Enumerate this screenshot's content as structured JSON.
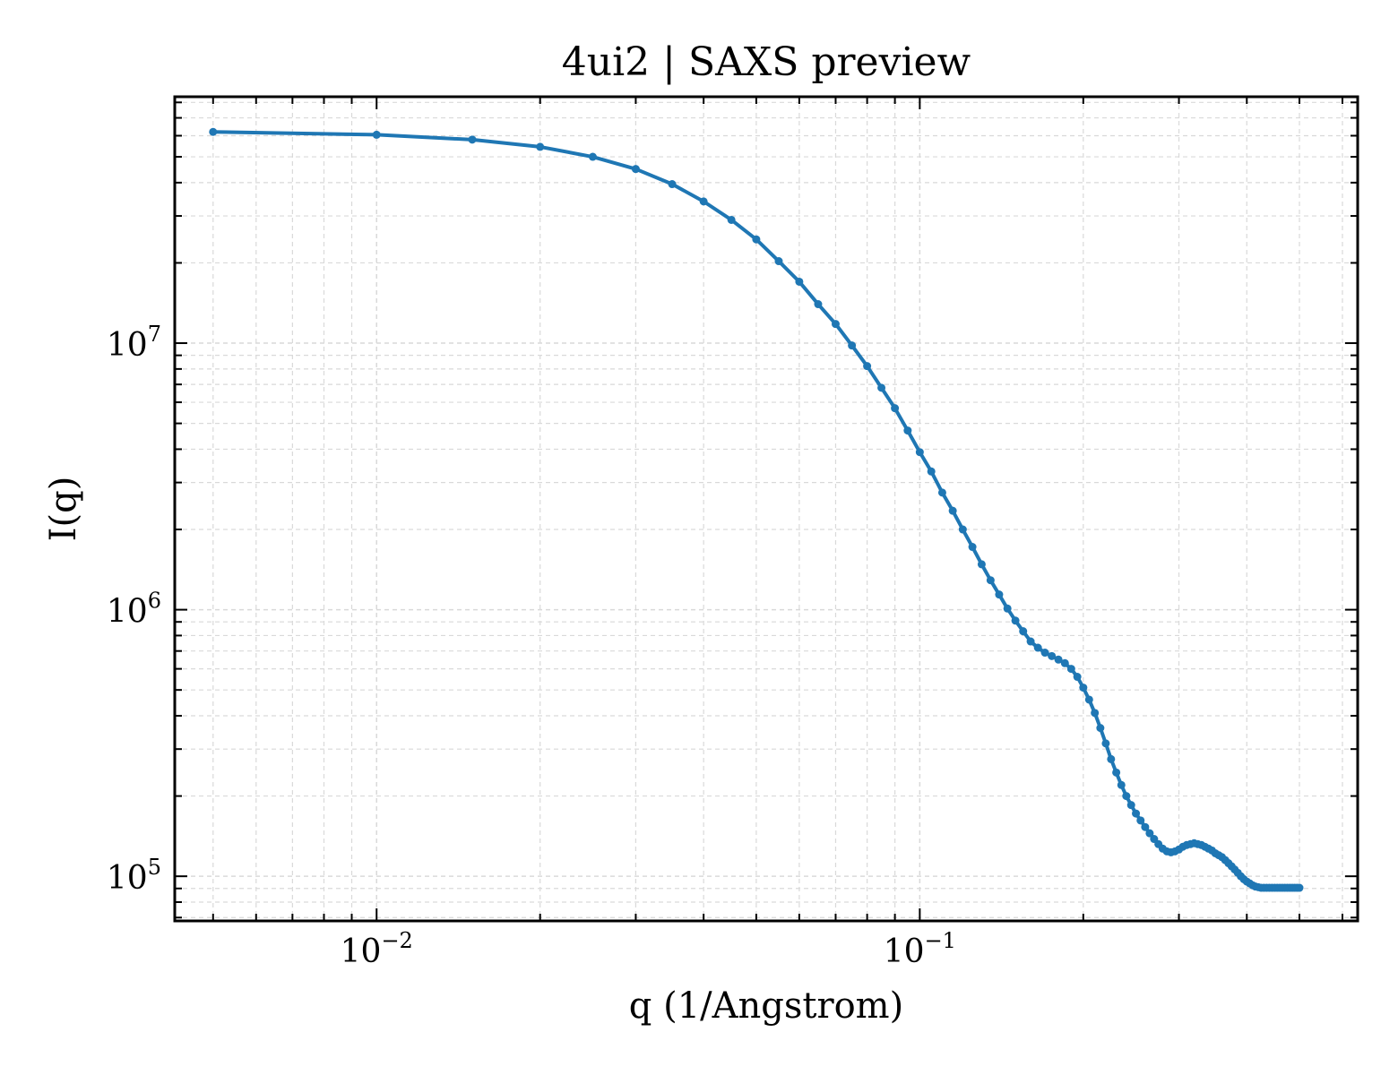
{
  "chart_data": {
    "type": "line",
    "title": "4ui2 | SAXS preview",
    "xlabel": "q (1/Angstrom)",
    "ylabel": "I(q)",
    "xscale": "log",
    "yscale": "log",
    "xlim": [
      0.00425,
      0.64
    ],
    "ylim": [
      68000,
      84000000
    ],
    "grid": true,
    "legend": "none",
    "colors": {
      "series": "#1f77b4",
      "grid": "#d9d9d9",
      "axis": "#000000"
    },
    "x_ticks": [
      {
        "base": "10",
        "exp": "−2",
        "value": 0.01
      },
      {
        "base": "10",
        "exp": "−1",
        "value": 0.1
      }
    ],
    "y_ticks": [
      {
        "base": "10",
        "exp": "5",
        "value": 100000
      },
      {
        "base": "10",
        "exp": "6",
        "value": 1000000
      },
      {
        "base": "10",
        "exp": "7",
        "value": 10000000
      }
    ],
    "series": [
      {
        "x": [
          0.005,
          0.01,
          0.015,
          0.02,
          0.025,
          0.03,
          0.035,
          0.04,
          0.045,
          0.05,
          0.055,
          0.06,
          0.065,
          0.07,
          0.075,
          0.08,
          0.085,
          0.09,
          0.095,
          0.1,
          0.105,
          0.11,
          0.115,
          0.12,
          0.125,
          0.13,
          0.135,
          0.14,
          0.145,
          0.15,
          0.155,
          0.16,
          0.165,
          0.17,
          0.175,
          0.18,
          0.185,
          0.19,
          0.195,
          0.2,
          0.205,
          0.21,
          0.215,
          0.22,
          0.225,
          0.23,
          0.235,
          0.24,
          0.245,
          0.25,
          0.255,
          0.26,
          0.265,
          0.27,
          0.275,
          0.28,
          0.285,
          0.29,
          0.295,
          0.3,
          0.305,
          0.31,
          0.315,
          0.32,
          0.325,
          0.33,
          0.335,
          0.34,
          0.345,
          0.35,
          0.355,
          0.36,
          0.365,
          0.37,
          0.375,
          0.38,
          0.385,
          0.39,
          0.395,
          0.4,
          0.405,
          0.41,
          0.415,
          0.42,
          0.425,
          0.43,
          0.435,
          0.44,
          0.445,
          0.45,
          0.455,
          0.46,
          0.465,
          0.47,
          0.475,
          0.48,
          0.485,
          0.49,
          0.495,
          0.5
        ],
        "y": [
          62000000,
          60500000,
          58000000,
          54500000,
          50000000,
          45000000,
          39500000,
          34000000,
          29000000,
          24500000,
          20300000,
          17000000,
          14000000,
          11800000,
          9800000,
          8200000,
          6800000,
          5700000,
          4700000,
          3900000,
          3300000,
          2750000,
          2350000,
          2000000,
          1720000,
          1480000,
          1290000,
          1140000,
          1010000,
          910000,
          830000,
          760000,
          720000,
          690000,
          670000,
          650000,
          630000,
          600000,
          560000,
          510000,
          460000,
          410000,
          360000,
          315000,
          275000,
          245000,
          220000,
          200000,
          185000,
          172000,
          162000,
          153000,
          145000,
          138000,
          132000,
          127000,
          124000,
          123000,
          124000,
          126000,
          129000,
          131000,
          132000,
          133000,
          132000,
          131000,
          129000,
          127000,
          125000,
          122000,
          120000,
          118000,
          115000,
          112000,
          109000,
          106000,
          103000,
          100000,
          97500,
          95500,
          94000,
          92500,
          91500,
          91000,
          90500,
          90500,
          90500,
          90500,
          90500,
          90500,
          90500,
          90500,
          90500,
          90500,
          90500,
          90500,
          90500,
          90500,
          90500,
          90500
        ]
      }
    ]
  }
}
